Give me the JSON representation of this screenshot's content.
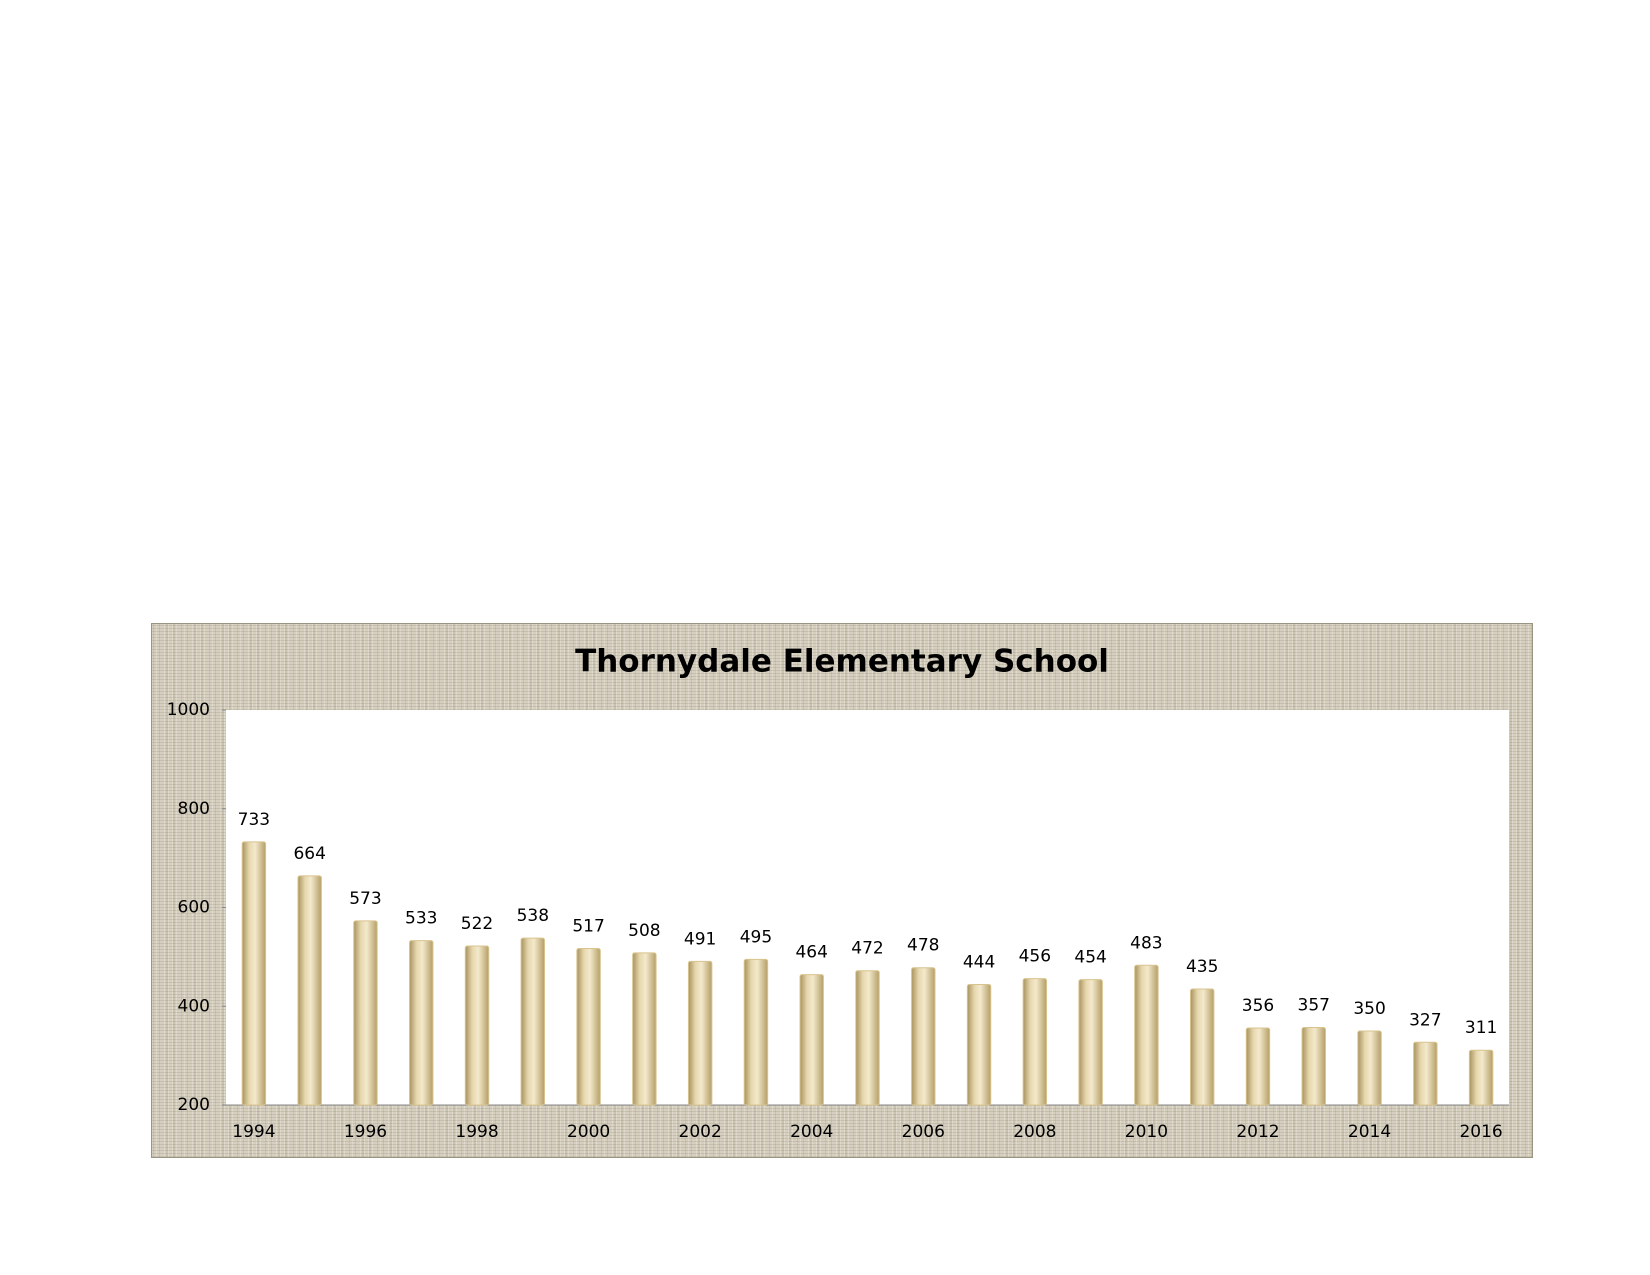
{
  "chart_data": {
    "type": "bar",
    "title": "Thornydale Elementary School",
    "categories": [
      "1994",
      null,
      "1996",
      null,
      "1998",
      null,
      "2000",
      null,
      "2002",
      null,
      "2004",
      null,
      "2006",
      null,
      "2008",
      null,
      "2010",
      null,
      "2012",
      null,
      "2014",
      null,
      "2016"
    ],
    "values": [
      733,
      664,
      573,
      533,
      522,
      538,
      517,
      508,
      491,
      495,
      464,
      472,
      478,
      444,
      456,
      454,
      483,
      435,
      356,
      357,
      350,
      327,
      311
    ],
    "color": "#d9c48f",
    "ylim": [
      200,
      1000
    ],
    "yticks": [
      200,
      400,
      600,
      800,
      1000
    ],
    "grid": false
  }
}
